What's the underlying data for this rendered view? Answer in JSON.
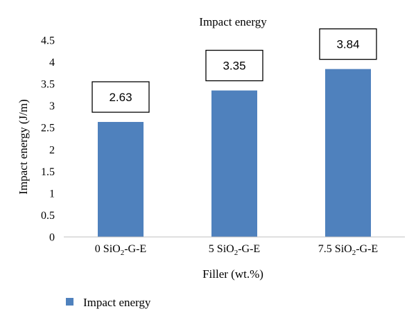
{
  "chart_data": {
    "type": "bar",
    "title": "Impact energy",
    "xlabel": "Filler (wt.%)",
    "ylabel": "Impact energy (J/m)",
    "ylim": [
      0,
      4.5
    ],
    "yticks": [
      0,
      0.5,
      1,
      1.5,
      2,
      2.5,
      3,
      3.5,
      4,
      4.5
    ],
    "categories": [
      {
        "prefix": "0 SiO",
        "sub": "2",
        "suffix": "-G-E"
      },
      {
        "prefix": "5 SiO",
        "sub": "2",
        "suffix": "-G-E"
      },
      {
        "prefix": "7.5 SiO",
        "sub": "2",
        "suffix": "-G-E"
      }
    ],
    "series": [
      {
        "name": "Impact energy",
        "values": [
          2.63,
          3.35,
          3.84
        ],
        "labels": [
          "2.63",
          "3.35",
          "3.84"
        ],
        "color": "#4f81bd"
      }
    ],
    "grid": false,
    "legend": "bottom-left",
    "data_labels": "boxed, above bars"
  }
}
